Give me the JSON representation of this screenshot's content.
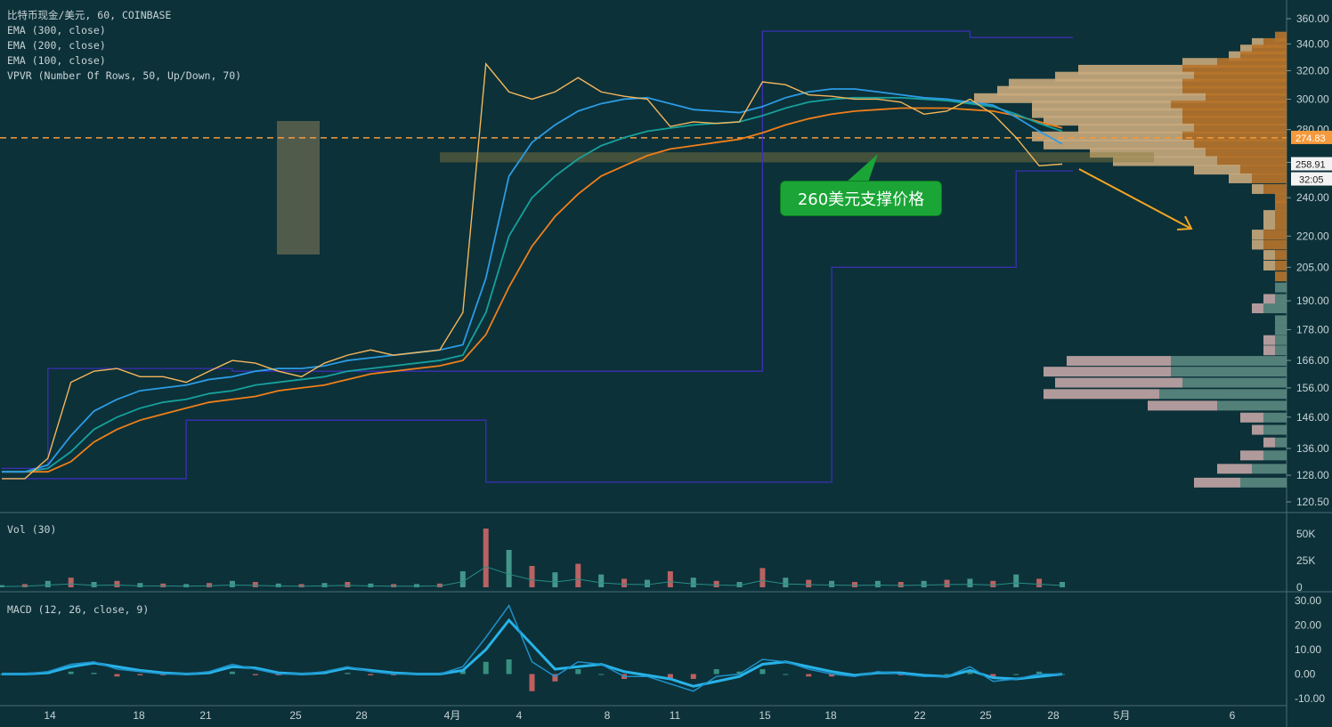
{
  "header": {
    "symbol_line": "比特币现金/美元, 60, COINBASE",
    "indicators": [
      "EMA (300, close)",
      "EMA (200, close)",
      "EMA (100, close)",
      "VPVR (Number Of Rows, 50, Up/Down, 70)"
    ]
  },
  "volume_pane": {
    "label": "Vol (30)"
  },
  "macd_pane": {
    "label": "MACD (12, 26, close, 9)"
  },
  "annotation": {
    "callout_text": "260美元支撑价格"
  },
  "price_tags": {
    "horizontal_level": "274.83",
    "last_price": "258.91",
    "countdown": "32:05"
  },
  "colors": {
    "background": "#0c3139",
    "candle": "#f5b65a",
    "ema100": "#2c9be3",
    "ema200": "#17a09c",
    "ema300": "#f07f1a",
    "channel": "#3b2fb8",
    "dashed_level": "#f59a3c",
    "arrow": "#f5a623",
    "callout": "#1aa536",
    "vp_up": "#c8aa7d",
    "vp_down": "#b8742b",
    "vp_up_low": "#c3a6a6",
    "vp_down_low": "#5c8a82",
    "macd_line": "#1e90c8",
    "signal_line": "#27b3e8"
  },
  "chart_data": [
    {
      "type": "line",
      "title": "比特币现金/美元, 60, COINBASE",
      "x_ticks": [
        "14",
        "18",
        "21",
        "25",
        "28",
        "4月",
        "4",
        "8",
        "11",
        "15",
        "18",
        "22",
        "25",
        "28",
        "5月",
        "6"
      ],
      "y_ticks": [
        "360.00",
        "340.00",
        "320.00",
        "300.00",
        "280.00",
        "260.00",
        "240.00",
        "220.00",
        "205.00",
        "190.00",
        "178.00",
        "166.00",
        "156.00",
        "146.00",
        "136.00",
        "128.00",
        "120.50"
      ],
      "ylim": [
        120.5,
        360
      ],
      "y_scale": "log",
      "x": [
        "3/13",
        "3/14",
        "3/15",
        "3/16",
        "3/17",
        "3/18",
        "3/19",
        "3/20",
        "3/21",
        "3/22",
        "3/23",
        "3/24",
        "3/25",
        "3/26",
        "3/27",
        "3/28",
        "3/29",
        "3/30",
        "3/31",
        "4/1",
        "4/2",
        "4/3",
        "4/4",
        "4/5",
        "4/6",
        "4/7",
        "4/8",
        "4/9",
        "4/10",
        "4/11",
        "4/12",
        "4/13",
        "4/14",
        "4/15",
        "4/16",
        "4/17",
        "4/18",
        "4/19",
        "4/20",
        "4/21",
        "4/22",
        "4/23",
        "4/24",
        "4/25",
        "4/26",
        "4/27",
        "4/28"
      ],
      "series": [
        {
          "name": "EMA (300, close)",
          "values": [
            129,
            129,
            129,
            132,
            138,
            142,
            145,
            147,
            149,
            151,
            152,
            153,
            155,
            156,
            157,
            159,
            161,
            162,
            163,
            164,
            166,
            176,
            196,
            215,
            230,
            242,
            252,
            258,
            264,
            268,
            270,
            272,
            274,
            278,
            283,
            287,
            290,
            292,
            293,
            294,
            294,
            294,
            293,
            292,
            289,
            285,
            281
          ]
        },
        {
          "name": "EMA (200, close)",
          "values": [
            129,
            129,
            130,
            135,
            142,
            146,
            149,
            151,
            152,
            154,
            155,
            157,
            158,
            159,
            160,
            162,
            163,
            164,
            165,
            166,
            168,
            185,
            220,
            240,
            252,
            262,
            270,
            275,
            279,
            281,
            283,
            284,
            285,
            289,
            294,
            298,
            300,
            301,
            301,
            301,
            300,
            299,
            297,
            295,
            290,
            284,
            279
          ]
        },
        {
          "name": "EMA (100, close)",
          "values": [
            129,
            129,
            131,
            140,
            148,
            152,
            155,
            156,
            157,
            159,
            160,
            162,
            163,
            163,
            164,
            166,
            167,
            168,
            169,
            170,
            172,
            200,
            252,
            272,
            283,
            292,
            297,
            300,
            301,
            297,
            293,
            292,
            291,
            295,
            301,
            305,
            307,
            307,
            305,
            303,
            301,
            300,
            298,
            296,
            288,
            279,
            271
          ]
        },
        {
          "name": "Price",
          "values": [
            127,
            127,
            133,
            158,
            162,
            163,
            160,
            160,
            158,
            162,
            166,
            165,
            162,
            160,
            165,
            168,
            170,
            168,
            169,
            170,
            185,
            325,
            305,
            300,
            305,
            315,
            305,
            302,
            300,
            282,
            285,
            284,
            285,
            312,
            310,
            303,
            302,
            300,
            300,
            298,
            290,
            292,
            300,
            290,
            275,
            258,
            259
          ]
        }
      ],
      "horizontal_level": 274.83,
      "last_price": 258.91,
      "support_zone": [
        260,
        266
      ],
      "channel_upper": [
        {
          "from": "3/13",
          "value": 130
        },
        {
          "from": "3/15",
          "value": 163
        },
        {
          "from": "3/21",
          "value": 163
        },
        {
          "from": "3/23",
          "value": 162
        },
        {
          "from": "4/15",
          "value": 350
        },
        {
          "from": "4/24",
          "value": 345
        }
      ],
      "channel_lower": [
        {
          "from": "3/13",
          "value": 127
        },
        {
          "from": "3/21",
          "value": 145
        },
        {
          "from": "4/3",
          "value": 126
        },
        {
          "from": "4/18",
          "value": 205
        },
        {
          "from": "4/26",
          "value": 255
        }
      ]
    },
    {
      "type": "bar",
      "title": "VPVR (Number Of Rows, 50, Up/Down, 70)",
      "orientation": "horizontal",
      "price_levels": [
        346,
        341,
        336,
        331,
        326,
        321,
        316,
        311,
        306,
        301,
        296,
        291,
        286,
        281,
        276,
        271,
        266,
        261,
        256,
        251,
        245,
        240,
        236,
        231,
        226,
        221,
        216,
        211,
        206,
        201,
        196,
        191,
        187,
        182,
        178,
        174,
        170,
        166,
        162,
        158,
        154,
        150,
        146,
        142,
        138,
        134,
        130,
        126
      ],
      "series": [
        {
          "name": "Up",
          "values": [
            0,
            0.1,
            0.1,
            0.1,
            0.3,
            0.9,
            1.2,
            1.5,
            1.6,
            2.0,
            1.2,
            1.3,
            1.2,
            1.0,
            1.3,
            1.3,
            1.0,
            0.9,
            0.4,
            0.2,
            0.1,
            0,
            0,
            0.1,
            0.1,
            0.1,
            0.1,
            0.1,
            0.1,
            0,
            0,
            0.1,
            0.1,
            0,
            0,
            0.1,
            0.1,
            0.9,
            1.1,
            1.1,
            1.0,
            0.6,
            0.2,
            0.1,
            0.1,
            0.2,
            0.3,
            0.4
          ]
        },
        {
          "name": "Down",
          "values": [
            0.1,
            0.2,
            0.3,
            0.4,
            0.6,
            0.9,
            0.8,
            0.9,
            0.9,
            0.7,
            1.0,
            0.9,
            0.9,
            0.8,
            0.9,
            0.8,
            0.7,
            0.6,
            0.4,
            0.3,
            0.2,
            0.1,
            0.1,
            0.1,
            0.1,
            0.2,
            0.2,
            0.1,
            0.1,
            0.1,
            0.1,
            0.1,
            0.2,
            0.1,
            0.1,
            0.1,
            0.1,
            1.0,
            1.0,
            0.9,
            1.1,
            0.6,
            0.2,
            0.2,
            0.1,
            0.2,
            0.3,
            0.4
          ]
        }
      ]
    },
    {
      "type": "bar",
      "title": "Vol (30)",
      "y_ticks": [
        "50K",
        "25K",
        "0"
      ],
      "ylim": [
        0,
        60000
      ],
      "x": [
        "3/13",
        "3/14",
        "3/15",
        "3/16",
        "3/17",
        "3/18",
        "3/19",
        "3/20",
        "3/21",
        "3/22",
        "3/23",
        "3/24",
        "3/25",
        "3/26",
        "3/27",
        "3/28",
        "3/29",
        "3/30",
        "3/31",
        "4/1",
        "4/2",
        "4/3",
        "4/4",
        "4/5",
        "4/6",
        "4/7",
        "4/8",
        "4/9",
        "4/10",
        "4/11",
        "4/12",
        "4/13",
        "4/14",
        "4/15",
        "4/16",
        "4/17",
        "4/18",
        "4/19",
        "4/20",
        "4/21",
        "4/22",
        "4/23",
        "4/24",
        "4/25",
        "4/26",
        "4/27",
        "4/28"
      ],
      "values": [
        2000,
        3000,
        6000,
        9000,
        5000,
        6000,
        4000,
        3500,
        3000,
        4000,
        6000,
        5000,
        3500,
        3000,
        4000,
        5000,
        3500,
        3000,
        3000,
        3500,
        15000,
        55000,
        35000,
        20000,
        14000,
        22000,
        12000,
        8000,
        7000,
        15000,
        9000,
        6000,
        5000,
        18000,
        9000,
        7000,
        6000,
        5000,
        6000,
        5000,
        6000,
        7000,
        8000,
        6000,
        12000,
        8000,
        5000
      ]
    },
    {
      "type": "line",
      "title": "MACD (12, 26, close, 9)",
      "y_ticks": [
        "30.00",
        "20.00",
        "10.00",
        "0.00",
        "-10.00"
      ],
      "ylim": [
        -10,
        30
      ],
      "x": [
        "3/13",
        "3/14",
        "3/15",
        "3/16",
        "3/17",
        "3/18",
        "3/19",
        "3/20",
        "3/21",
        "3/22",
        "3/23",
        "3/24",
        "3/25",
        "3/26",
        "3/27",
        "3/28",
        "3/29",
        "3/30",
        "3/31",
        "4/1",
        "4/2",
        "4/3",
        "4/4",
        "4/5",
        "4/6",
        "4/7",
        "4/8",
        "4/9",
        "4/10",
        "4/11",
        "4/12",
        "4/13",
        "4/14",
        "4/15",
        "4/16",
        "4/17",
        "4/18",
        "4/19",
        "4/20",
        "4/21",
        "4/22",
        "4/23",
        "4/24",
        "4/25",
        "4/26",
        "4/27",
        "4/28"
      ],
      "series": [
        {
          "name": "MACD",
          "values": [
            0,
            0,
            1,
            4,
            5,
            2,
            1,
            0,
            0,
            1,
            4,
            2,
            0,
            0,
            1,
            3,
            1,
            0,
            0,
            0,
            3,
            15,
            28,
            5,
            -1,
            5,
            4,
            -1,
            -1,
            -4,
            -7,
            -1,
            0,
            6,
            5,
            2,
            0,
            -1,
            1,
            0,
            -1,
            -1,
            3,
            -3,
            -2,
            0,
            0
          ]
        },
        {
          "name": "Signal",
          "values": [
            0,
            0,
            0.5,
            3,
            4.5,
            3,
            1.5,
            0.5,
            0,
            0.5,
            3,
            2.5,
            0.5,
            0,
            0.5,
            2.5,
            1.5,
            0.5,
            0,
            0,
            1.5,
            10,
            22,
            12,
            2,
            3,
            4,
            1,
            -0.5,
            -2,
            -5,
            -3,
            -1,
            4,
            5,
            3,
            1,
            -0.5,
            0.5,
            0.5,
            -0.5,
            -1,
            1.5,
            -1.5,
            -2,
            -1,
            0
          ]
        }
      ]
    }
  ]
}
